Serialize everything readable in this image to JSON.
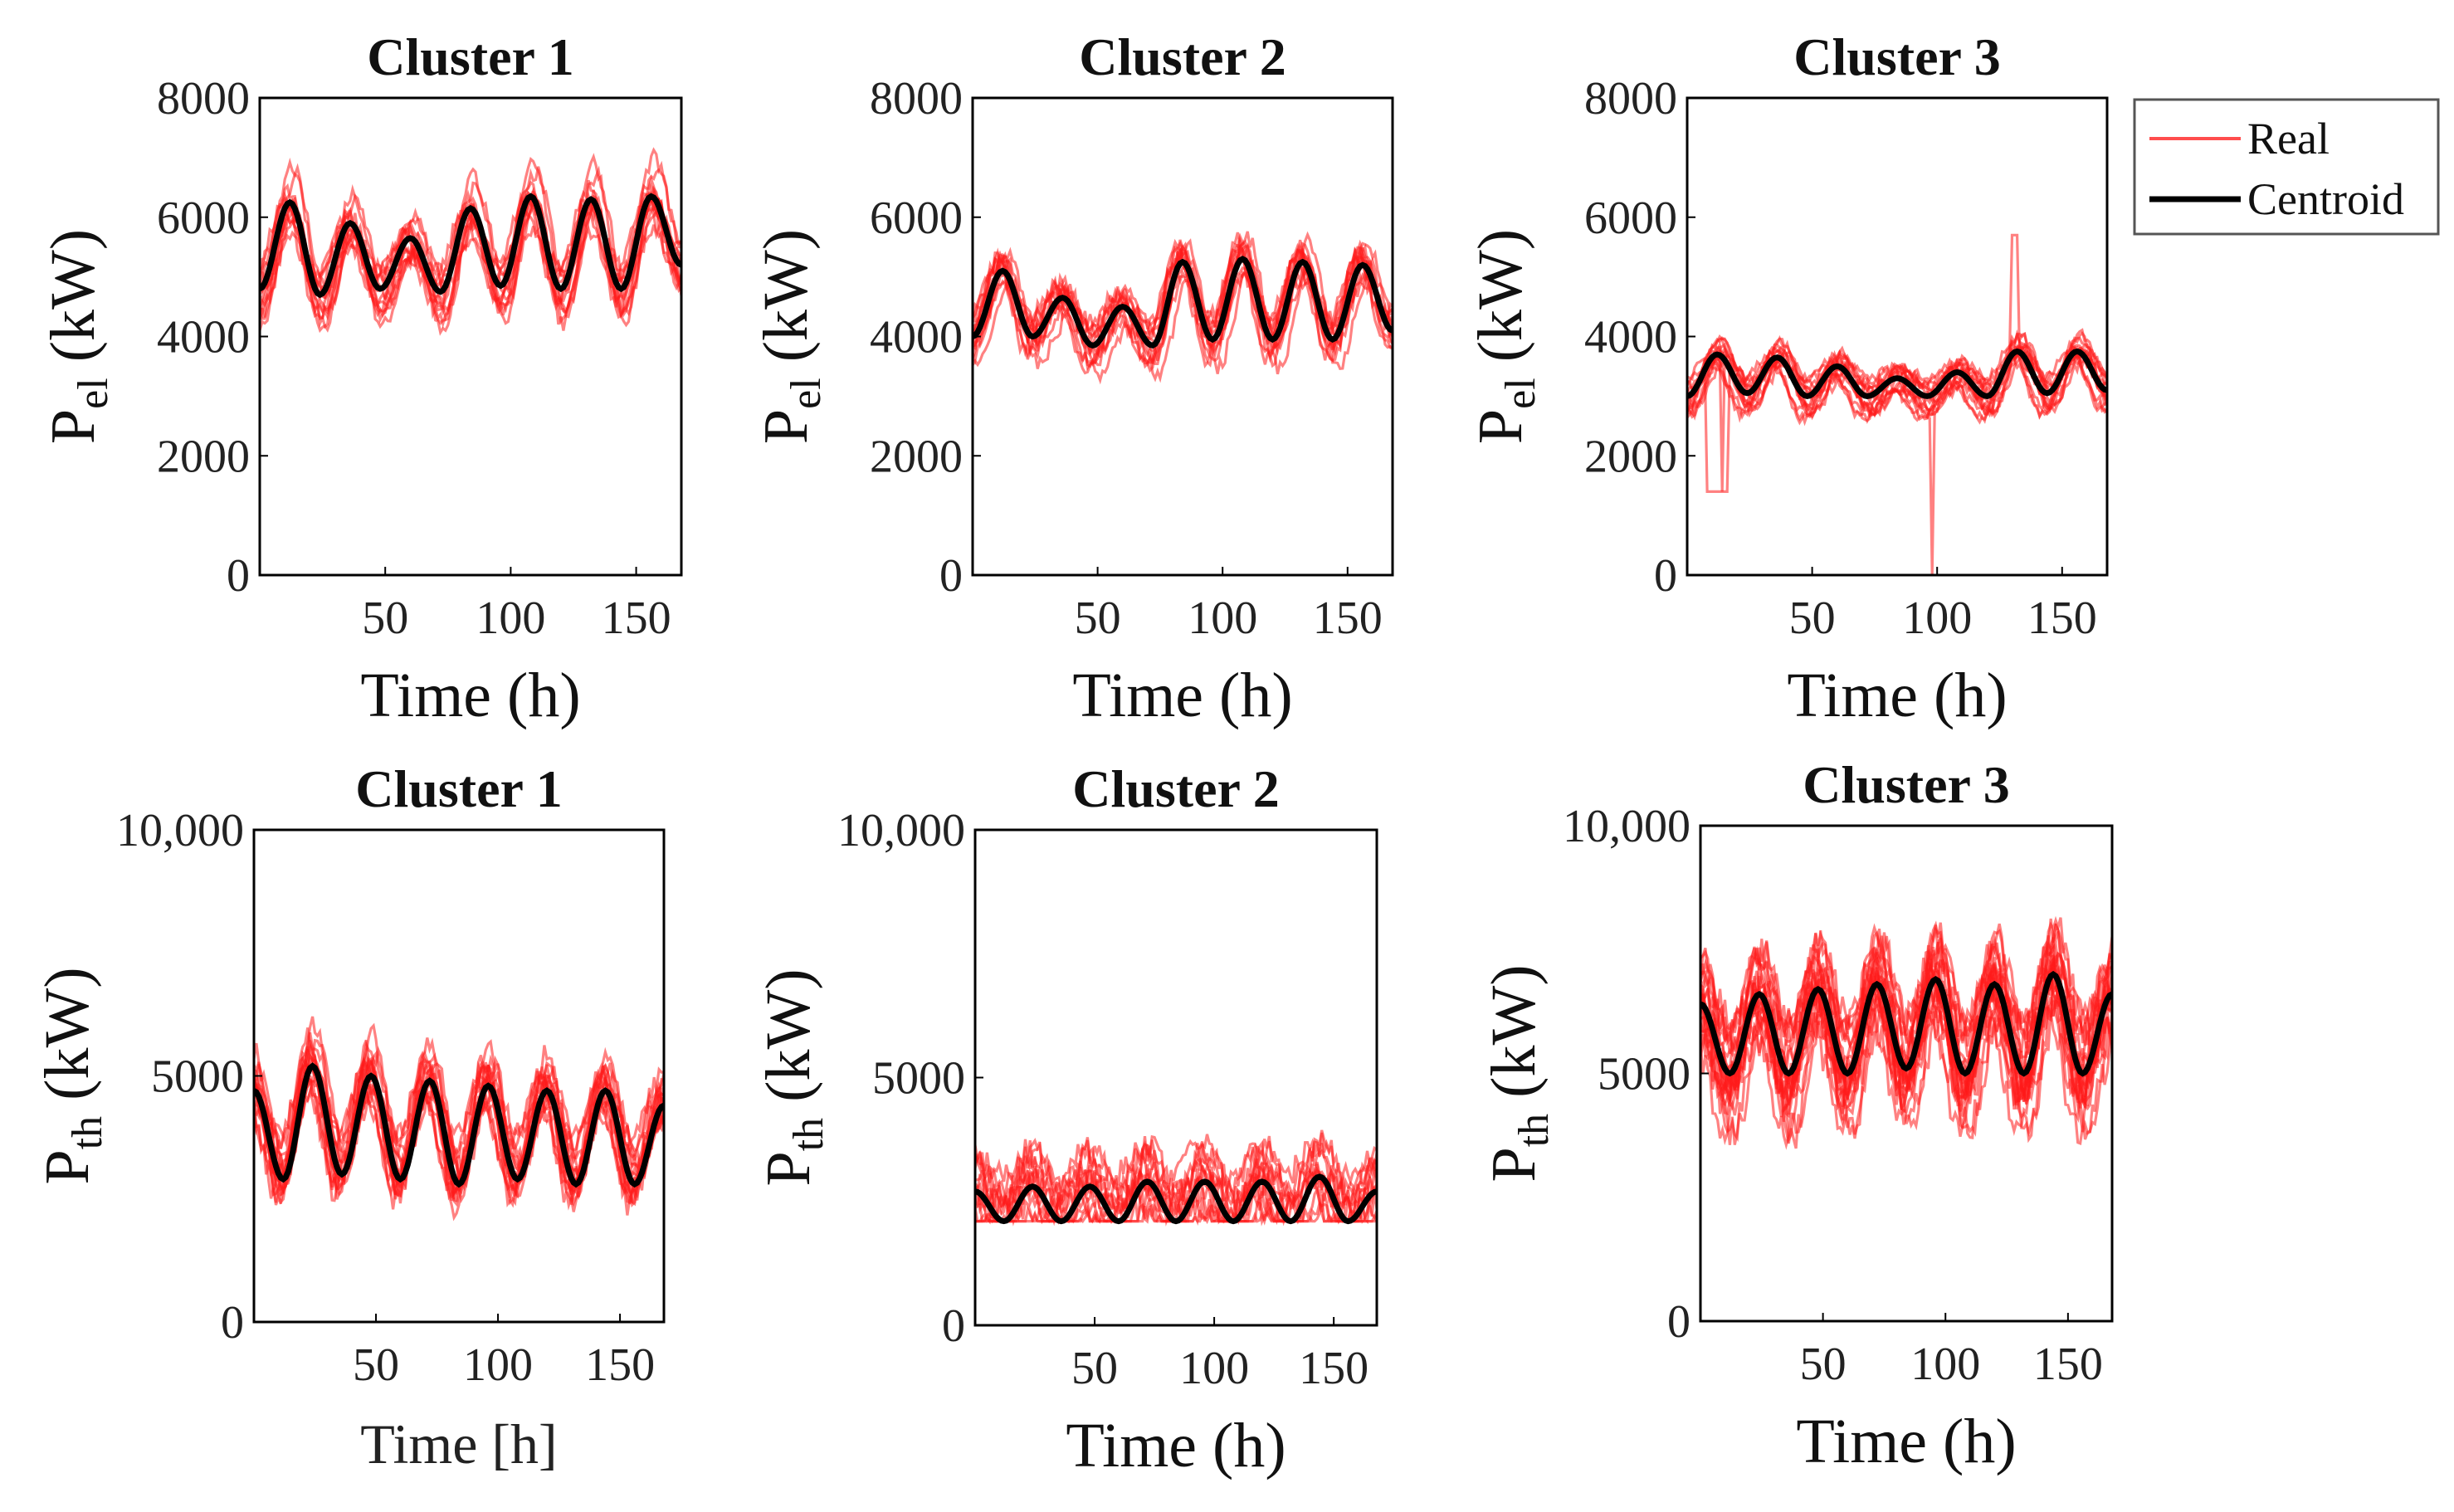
{
  "colors": {
    "real": "#ff1a1a",
    "centroid": "#000000",
    "axis": "#000000"
  },
  "legend": {
    "entries": [
      "Real",
      "Centroid"
    ],
    "position": "top-right"
  },
  "chart_data": [
    {
      "type": "line",
      "panel": "top-1",
      "title": "Cluster 1",
      "ylabel_main": "P",
      "ylabel_sub": "el",
      "ylabel_unit": " (kW)",
      "xlabel": "Time (h)",
      "xlim": [
        0,
        168
      ],
      "ylim": [
        0,
        8000
      ],
      "xticks": [
        50,
        100,
        150
      ],
      "xtick_labels": [
        "50",
        "100",
        "150"
      ],
      "yticks": [
        0,
        2000,
        4000,
        6000,
        8000
      ],
      "ytick_labels": [
        "0",
        "2000",
        "4000",
        "6000",
        "8000"
      ],
      "period": 24,
      "baseline": 4600,
      "amplitude": 1600,
      "phase": 14,
      "spread": 550,
      "n_real": 14,
      "series": [
        {
          "name": "Centroid",
          "x": [
            0,
            12,
            24,
            36,
            48,
            60,
            72,
            84,
            96,
            108,
            120,
            132,
            144,
            156,
            168
          ],
          "y": [
            4800,
            6250,
            4700,
            5900,
            4800,
            5650,
            4750,
            6150,
            4850,
            6350,
            4800,
            6300,
            4800,
            6350,
            5200
          ]
        }
      ]
    },
    {
      "type": "line",
      "panel": "top-2",
      "title": "Cluster 2",
      "ylabel_main": "P",
      "ylabel_sub": "el",
      "ylabel_unit": " (kW)",
      "xlabel": "Time (h)",
      "xlim": [
        0,
        168
      ],
      "ylim": [
        0,
        8000
      ],
      "xticks": [
        50,
        100,
        150
      ],
      "xtick_labels": [
        "50",
        "100",
        "150"
      ],
      "yticks": [
        0,
        2000,
        4000,
        6000,
        8000
      ],
      "ytick_labels": [
        "0",
        "2000",
        "4000",
        "6000",
        "8000"
      ],
      "period": 24,
      "baseline": 3800,
      "amplitude": 1200,
      "phase": 14,
      "spread": 550,
      "n_real": 14,
      "series": [
        {
          "name": "Centroid",
          "x": [
            0,
            12,
            24,
            36,
            48,
            60,
            72,
            84,
            96,
            108,
            120,
            132,
            144,
            156,
            168
          ],
          "y": [
            4000,
            5100,
            4000,
            4650,
            3850,
            4500,
            3850,
            5250,
            3950,
            5300,
            3950,
            5250,
            3950,
            5200,
            4100
          ]
        }
      ]
    },
    {
      "type": "line",
      "panel": "top-3",
      "title": "Cluster 3",
      "ylabel_main": "P",
      "ylabel_sub": "el",
      "ylabel_unit": " (kW)",
      "xlabel": "Time (h)",
      "xlim": [
        0,
        168
      ],
      "ylim": [
        0,
        8000
      ],
      "xticks": [
        50,
        100,
        150
      ],
      "xtick_labels": [
        "50",
        "100",
        "150"
      ],
      "yticks": [
        0,
        2000,
        4000,
        6000,
        8000
      ],
      "ytick_labels": [
        "0",
        "2000",
        "4000",
        "6000",
        "8000"
      ],
      "period": 24,
      "baseline": 3000,
      "amplitude": 700,
      "phase": 14,
      "spread": 350,
      "n_real": 16,
      "series": [
        {
          "name": "Centroid",
          "x": [
            0,
            12,
            24,
            36,
            48,
            60,
            72,
            84,
            96,
            108,
            120,
            132,
            144,
            156,
            168
          ],
          "y": [
            3000,
            3700,
            3050,
            3650,
            3000,
            3500,
            3000,
            3300,
            3000,
            3400,
            3000,
            3750,
            3050,
            3750,
            3100
          ]
        }
      ],
      "annotations": [
        {
          "type": "dip",
          "x": 98,
          "y": 0
        },
        {
          "type": "dip",
          "x": 14,
          "y": 1400
        },
        {
          "type": "spike",
          "x": 131,
          "y": 5700
        }
      ]
    },
    {
      "type": "line",
      "panel": "bottom-1",
      "title": "Cluster 1",
      "ylabel_main": "P",
      "ylabel_sub": "th",
      "ylabel_unit": " (kW)",
      "xlabel": "Time [h]",
      "xlim": [
        0,
        168
      ],
      "ylim": [
        0,
        10000
      ],
      "xticks": [
        50,
        100,
        150
      ],
      "xtick_labels": [
        "50",
        "100",
        "150"
      ],
      "yticks": [
        0,
        5000,
        10000
      ],
      "ytick_labels": [
        "0",
        "5000",
        "10,000"
      ],
      "period": 24,
      "baseline": 2600,
      "amplitude": 2600,
      "phase": 20,
      "spread": 900,
      "floor": 2000,
      "n_real": 18,
      "series": [
        {
          "name": "Centroid",
          "x": [
            0,
            12,
            24,
            36,
            48,
            60,
            72,
            84,
            96,
            108,
            120,
            132,
            144,
            156,
            168
          ],
          "y": [
            4700,
            2900,
            5200,
            3000,
            5000,
            2900,
            4900,
            2800,
            4800,
            2900,
            4700,
            2800,
            4700,
            2800,
            4400
          ]
        }
      ]
    },
    {
      "type": "line",
      "panel": "bottom-2",
      "title": "Cluster 2",
      "ylabel_main": "P",
      "ylabel_sub": "th",
      "ylabel_unit": " (kW)",
      "xlabel": "Time (h)",
      "xlim": [
        0,
        168
      ],
      "ylim": [
        0,
        10000
      ],
      "xticks": [
        50,
        100,
        150
      ],
      "xtick_labels": [
        "50",
        "100",
        "150"
      ],
      "yticks": [
        0,
        5000,
        10000
      ],
      "ytick_labels": [
        "0",
        "5000",
        "10,000"
      ],
      "period": 24,
      "baseline": 2100,
      "amplitude": 900,
      "phase": 20,
      "spread": 1100,
      "floor": 2100,
      "n_real": 14,
      "series": [
        {
          "name": "Centroid",
          "x": [
            0,
            12,
            24,
            36,
            48,
            60,
            72,
            84,
            96,
            108,
            120,
            132,
            144,
            156,
            168
          ],
          "y": [
            2700,
            2100,
            2800,
            2100,
            2800,
            2100,
            2900,
            2100,
            2900,
            2100,
            2900,
            2100,
            3000,
            2100,
            2700
          ]
        }
      ]
    },
    {
      "type": "line",
      "panel": "bottom-3",
      "title": "Cluster 3",
      "ylabel_main": "P",
      "ylabel_sub": "th",
      "ylabel_unit": " (kW)",
      "xlabel": "Time (h)",
      "xlim": [
        0,
        168
      ],
      "ylim": [
        0,
        10000
      ],
      "xticks": [
        50,
        100,
        150
      ],
      "xtick_labels": [
        "50",
        "100",
        "150"
      ],
      "yticks": [
        0,
        5000,
        10000
      ],
      "ytick_labels": [
        "0",
        "5000",
        "10,000"
      ],
      "period": 24,
      "baseline": 5200,
      "amplitude": 1800,
      "phase": 20,
      "spread": 1400,
      "n_real": 24,
      "series": [
        {
          "name": "Centroid",
          "x": [
            0,
            12,
            24,
            36,
            48,
            60,
            72,
            84,
            96,
            108,
            120,
            132,
            144,
            156,
            168
          ],
          "y": [
            6400,
            5000,
            6600,
            5000,
            6700,
            5000,
            6800,
            5100,
            6900,
            5000,
            6800,
            5000,
            7000,
            5000,
            6600
          ]
        }
      ]
    }
  ]
}
